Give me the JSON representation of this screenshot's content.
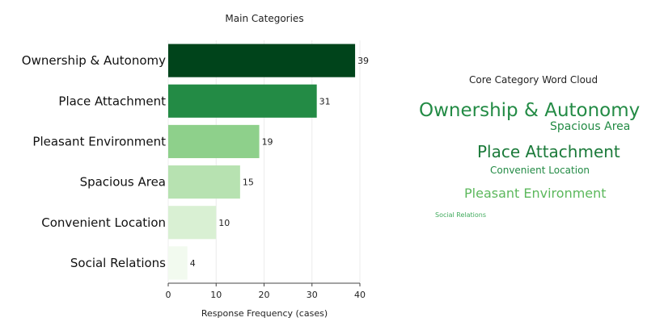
{
  "chart_data": [
    {
      "type": "bar",
      "orientation": "horizontal",
      "title": "Main Categories",
      "xlabel": "Response Frequency (cases)",
      "ylabel": "",
      "categories": [
        "Ownership & Autonomy",
        "Place Attachment",
        "Pleasant Environment",
        "Spacious Area",
        "Convenient Location",
        "Social Relations"
      ],
      "values": [
        39,
        31,
        19,
        15,
        10,
        4
      ],
      "data_labels": [
        "39",
        "31",
        "19",
        "15",
        "10",
        "4"
      ],
      "colors": [
        "#00441b",
        "#238b45",
        "#8ed08b",
        "#b7e2b1",
        "#d9f0d3",
        "#f2faef"
      ],
      "xlim": [
        0,
        40
      ],
      "xticks": [
        0,
        10,
        20,
        30,
        40
      ],
      "xtick_labels": [
        "0",
        "10",
        "20",
        "30",
        "40"
      ],
      "grid": true,
      "legend": "none"
    },
    {
      "type": "wordcloud",
      "title": "Core Category Word Cloud",
      "words": [
        {
          "text": "Ownership & Autonomy",
          "weight": 39,
          "color": "#238b45"
        },
        {
          "text": "Spacious Area",
          "weight": 15,
          "color": "#238b45"
        },
        {
          "text": "Place Attachment",
          "weight": 31,
          "color": "#1b7a3a"
        },
        {
          "text": "Convenient Location",
          "weight": 10,
          "color": "#238b45"
        },
        {
          "text": "Pleasant Environment",
          "weight": 19,
          "color": "#5cb85c"
        },
        {
          "text": "Social Relations",
          "weight": 4,
          "color": "#41ab5d"
        }
      ]
    }
  ]
}
